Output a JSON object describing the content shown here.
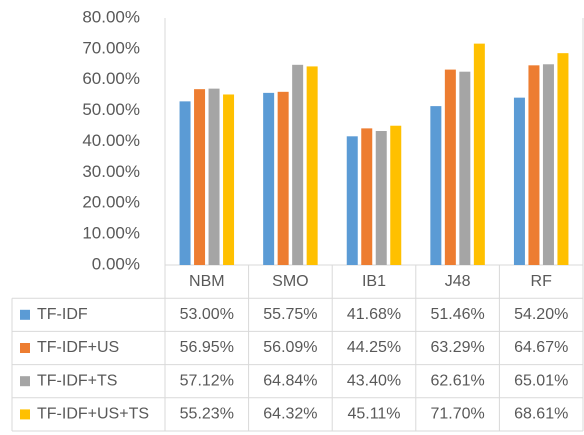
{
  "chart_data": {
    "type": "bar",
    "categories": [
      "NBM",
      "SMO",
      "IB1",
      "J48",
      "RF"
    ],
    "series": [
      {
        "name": "TF-IDF",
        "color": "#5b9bd5",
        "values": [
          53.0,
          55.75,
          41.68,
          51.46,
          54.2
        ],
        "value_labels": [
          "53.00%",
          "55.75%",
          "41.68%",
          "51.46%",
          "54.20%"
        ]
      },
      {
        "name": "TF-IDF+US",
        "color": "#ed7d31",
        "values": [
          56.95,
          56.09,
          44.25,
          63.29,
          64.67
        ],
        "value_labels": [
          "56.95%",
          "56.09%",
          "44.25%",
          "63.29%",
          "64.67%"
        ]
      },
      {
        "name": "TF-IDF+TS",
        "color": "#a5a5a5",
        "values": [
          57.12,
          64.84,
          43.4,
          62.61,
          65.01
        ],
        "value_labels": [
          "57.12%",
          "64.84%",
          "43.40%",
          "62.61%",
          "65.01%"
        ]
      },
      {
        "name": "TF-IDF+US+TS",
        "color": "#ffc000",
        "values": [
          55.23,
          64.32,
          45.11,
          71.7,
          68.61
        ],
        "value_labels": [
          "55.23%",
          "64.32%",
          "45.11%",
          "71.70%",
          "68.61%"
        ]
      }
    ],
    "ylim": [
      0,
      80
    ],
    "yticks": [
      {
        "value": 0,
        "label": "0.00%"
      },
      {
        "value": 10,
        "label": "10.00%"
      },
      {
        "value": 20,
        "label": "20.00%"
      },
      {
        "value": 30,
        "label": "30.00%"
      },
      {
        "value": 40,
        "label": "40.00%"
      },
      {
        "value": 50,
        "label": "50.00%"
      },
      {
        "value": 60,
        "label": "60.00%"
      },
      {
        "value": 70,
        "label": "70.00%"
      },
      {
        "value": 80,
        "label": "80.00%"
      }
    ],
    "grid": false
  }
}
